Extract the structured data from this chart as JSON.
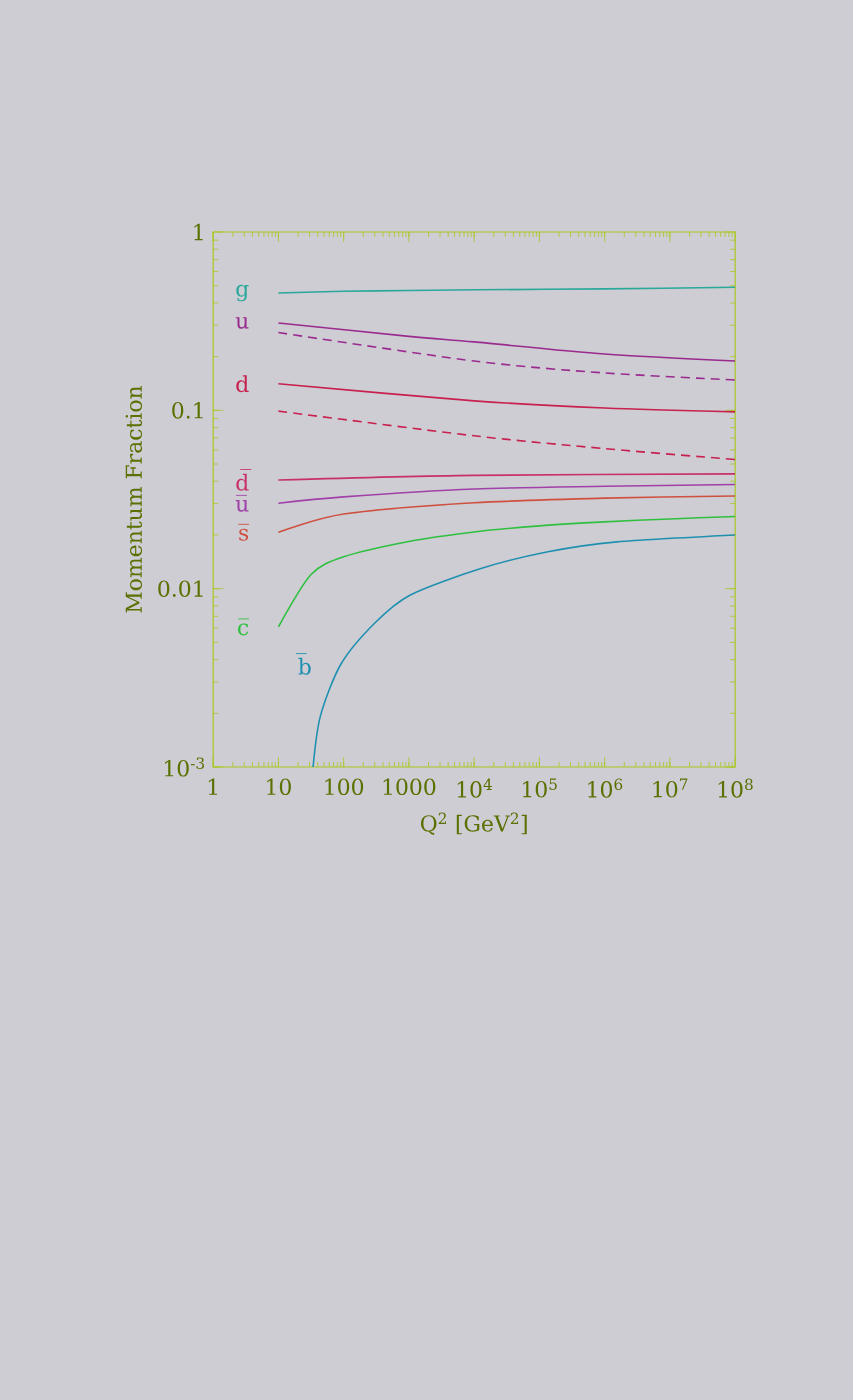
{
  "chart_data": {
    "type": "line",
    "xlabel": "Q$^{2}$ [GeV$^{2}$]",
    "ylabel": "Momentum Fraction",
    "log": "xy",
    "xlim": [
      1,
      100000000
    ],
    "ylim": [
      0.001,
      1
    ],
    "xticks": [
      1,
      10,
      100,
      1000,
      {
        "value": 10000,
        "label": "10$^{4}$"
      },
      {
        "value": 100000,
        "label": "10$^{5}$"
      },
      {
        "value": 1000000,
        "label": "10$^{6}$"
      },
      {
        "value": 10000000,
        "label": "10$^{7}$"
      },
      {
        "value": 100000000,
        "label": "10$^{8}$"
      }
    ],
    "yticks": [
      {
        "value": 0.001,
        "label": "10$^{-3}$"
      },
      0.01,
      0.1,
      1
    ],
    "series": [
      {
        "name": "g",
        "color": "#2aa89a",
        "x": [
          10,
          100,
          1000,
          10000,
          1000000,
          100000000
        ],
        "values": [
          0.455,
          0.465,
          0.47,
          0.474,
          0.48,
          0.49
        ]
      },
      {
        "name": "u",
        "color": "#9b2a8f",
        "x": [
          10,
          1000,
          10000,
          1000000,
          100000000
        ],
        "values": [
          0.309,
          0.26,
          0.242,
          0.207,
          0.189
        ]
      },
      {
        "color": "#9b2a8f",
        "line_style": "dashed",
        "x": [
          10,
          10000,
          1000000,
          100000000
        ],
        "values": [
          0.273,
          0.189,
          0.162,
          0.148
        ]
      },
      {
        "name": "d",
        "color": "#c8204f",
        "x": [
          10,
          10000,
          1000000,
          100000000
        ],
        "values": [
          0.141,
          0.113,
          0.103,
          0.098
        ]
      },
      {
        "color": "#c8204f",
        "line_style": "dashed",
        "x": [
          10,
          10000,
          1000000,
          100000000
        ],
        "values": [
          0.099,
          0.072,
          0.061,
          0.053
        ]
      },
      {
        "name": "d̅",
        "color": "#c8306a",
        "x": [
          10,
          10000,
          100000000
        ],
        "values": [
          0.0407,
          0.0432,
          0.044
        ]
      },
      {
        "name": "u̅",
        "color": "#a040a8",
        "x": [
          10,
          100,
          10000,
          1000000,
          100000000
        ],
        "values": [
          0.0301,
          0.0327,
          0.0362,
          0.0375,
          0.0384
        ]
      },
      {
        "name": "s̅",
        "color": "#d05040",
        "x": [
          10,
          100,
          10000,
          1000000,
          100000000
        ],
        "values": [
          0.0207,
          0.0262,
          0.0303,
          0.0322,
          0.0331
        ]
      },
      {
        "name": "c̅",
        "color": "#30c040",
        "x": [
          10,
          31.6,
          100,
          1000,
          10000,
          100000,
          1000000,
          10000000,
          100000000
        ],
        "values": [
          0.0061,
          0.012,
          0.0151,
          0.0184,
          0.0208,
          0.0225,
          0.0237,
          0.0246,
          0.0254
        ]
      },
      {
        "name": "b̅",
        "color": "#2090b0",
        "x": [
          34,
          44,
          91,
          300,
          1050,
          12000,
          135000,
          1550000,
          100000000
        ],
        "values": [
          0.001,
          0.00193,
          0.00378,
          0.00642,
          0.00922,
          0.0129,
          0.0161,
          0.0183,
          0.02
        ]
      }
    ]
  }
}
